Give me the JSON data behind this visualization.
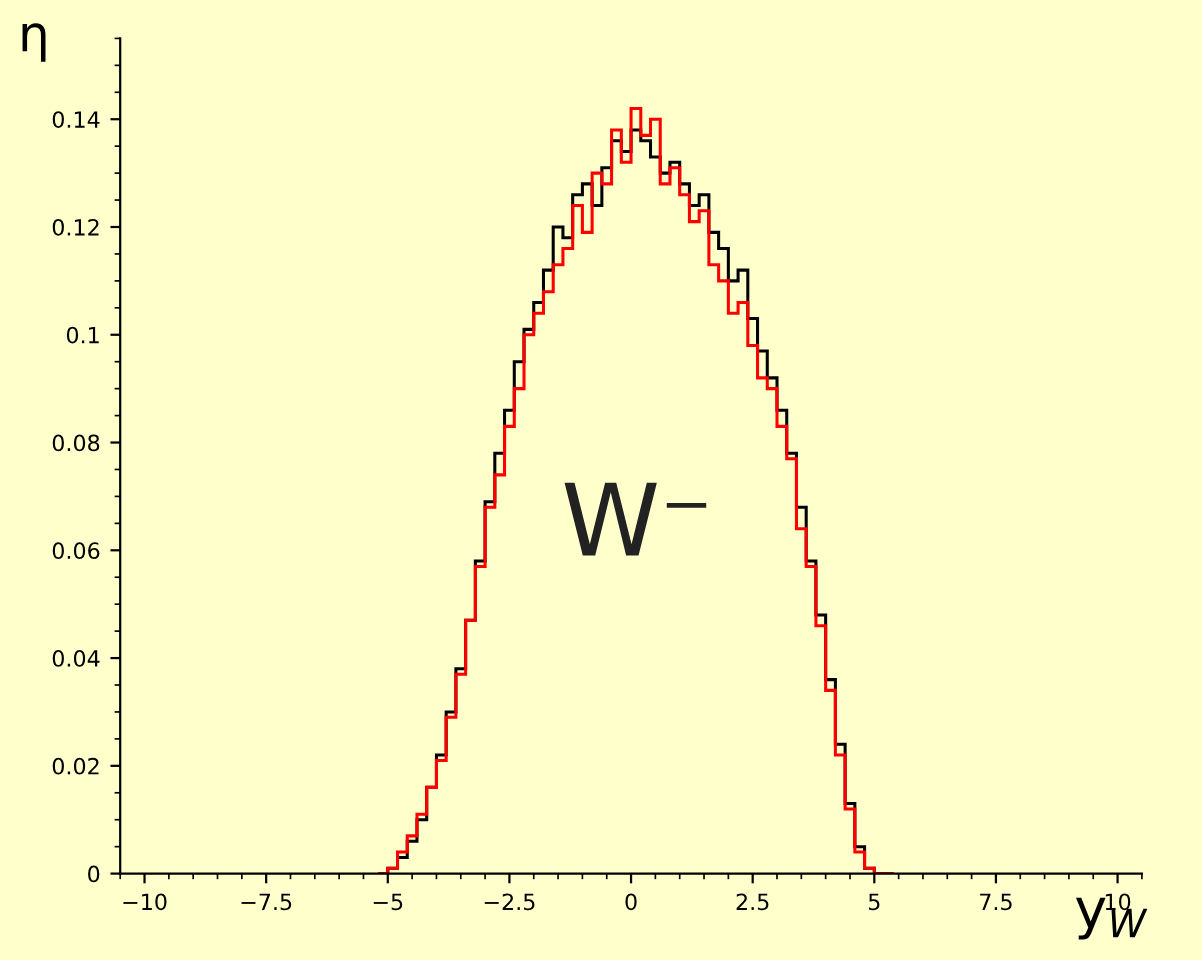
{
  "chart_data": {
    "type": "histogram",
    "ylabel": "η",
    "xlabel": "y$_{W}$",
    "annotations": [
      "W⁻"
    ],
    "bins": [
      -5.2,
      -5.0,
      -4.8,
      -4.6,
      -4.4,
      -4.2,
      -4.0,
      -3.8,
      -3.6,
      -3.4,
      -3.2,
      -3.0,
      -2.8,
      -2.6,
      -2.4,
      -2.2,
      -2.0,
      -1.8,
      -1.6,
      -1.4,
      -1.2,
      -1.0,
      -0.8,
      -0.6,
      -0.4,
      -0.2,
      0.0,
      0.2,
      0.4,
      0.6,
      0.8,
      1.0,
      1.2,
      1.4,
      1.6,
      1.8,
      2.0,
      2.2,
      2.4,
      2.6,
      2.8,
      3.0,
      3.2,
      3.4,
      3.6,
      3.8,
      4.0,
      4.2,
      4.4,
      4.6,
      4.8,
      5.0,
      5.2,
      5.4
    ],
    "series": [
      {
        "color": "#000000",
        "values": [
          0,
          0.001,
          0.003,
          0.006,
          0.01,
          0.016,
          0.022,
          0.03,
          0.038,
          0.047,
          0.058,
          0.069,
          0.078,
          0.086,
          0.095,
          0.101,
          0.106,
          0.112,
          0.12,
          0.118,
          0.126,
          0.128,
          0.124,
          0.131,
          0.136,
          0.134,
          0.138,
          0.136,
          0.133,
          0.13,
          0.132,
          0.128,
          0.124,
          0.126,
          0.119,
          0.116,
          0.11,
          0.112,
          0.103,
          0.097,
          0.092,
          0.086,
          0.078,
          0.068,
          0.058,
          0.048,
          0.036,
          0.024,
          0.013,
          0.005,
          0.001,
          0,
          0
        ]
      },
      {
        "color": "#ff0000",
        "values": [
          0,
          0.001,
          0.004,
          0.007,
          0.011,
          0.016,
          0.021,
          0.029,
          0.037,
          0.047,
          0.057,
          0.068,
          0.074,
          0.083,
          0.09,
          0.1,
          0.104,
          0.108,
          0.113,
          0.116,
          0.124,
          0.119,
          0.13,
          0.128,
          0.138,
          0.132,
          0.142,
          0.137,
          0.14,
          0.128,
          0.131,
          0.126,
          0.121,
          0.123,
          0.113,
          0.11,
          0.104,
          0.106,
          0.098,
          0.092,
          0.09,
          0.083,
          0.077,
          0.064,
          0.057,
          0.046,
          0.034,
          0.022,
          0.012,
          0.004,
          0.001,
          0,
          0
        ]
      }
    ],
    "xlim": [
      -10.5,
      10.5
    ],
    "ylim": [
      0,
      0.155
    ],
    "xticks": [
      {
        "value": -10,
        "label": "−10"
      },
      {
        "value": -7.5,
        "label": "−7.5"
      },
      {
        "value": -5,
        "label": "−5"
      },
      {
        "value": -2.5,
        "label": "−2.5"
      },
      0,
      2.5,
      5,
      7.5,
      10
    ],
    "yticks": [
      0,
      0.02,
      0.04,
      0.06,
      0.08,
      0.1,
      0.12,
      0.14
    ],
    "grid": false,
    "legend": false
  }
}
